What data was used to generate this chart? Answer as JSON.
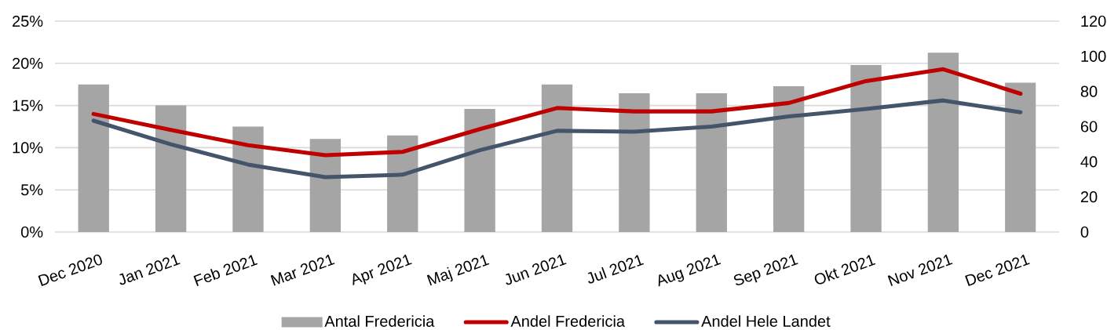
{
  "chart_data": {
    "type": "bar",
    "categories": [
      "Dec 2020",
      "Jan 2021",
      "Feb 2021",
      "Mar 2021",
      "Apr 2021",
      "Maj 2021",
      "Jun 2021",
      "Jul 2021",
      "Aug 2021",
      "Sep 2021",
      "Okt 2021",
      "Nov 2021",
      "Dec 2021"
    ],
    "series": [
      {
        "name": "Antal Fredericia",
        "axis": "y2",
        "color": "#a5a5a5",
        "values": [
          84,
          72,
          60,
          53,
          55,
          70,
          84,
          79,
          79,
          83,
          95,
          102,
          85
        ]
      },
      {
        "name": "Andel Fredericia",
        "type": "line",
        "color": "#c00000",
        "values": [
          14.0,
          12.1,
          10.3,
          9.1,
          9.5,
          12.2,
          14.7,
          14.3,
          14.3,
          15.3,
          17.9,
          19.3,
          16.4
        ]
      },
      {
        "name": "Andel Hele Landet",
        "type": "line",
        "color": "#44546a",
        "values": [
          13.2,
          10.4,
          8.0,
          6.5,
          6.8,
          9.7,
          12.0,
          11.9,
          12.5,
          13.7,
          14.6,
          15.6,
          14.2
        ]
      }
    ],
    "ylim": [
      0,
      25
    ],
    "yticks": [
      {
        "value": 0,
        "label": "0%"
      },
      {
        "value": 5,
        "label": "5%"
      },
      {
        "value": 10,
        "label": "10%"
      },
      {
        "value": 15,
        "label": "15%"
      },
      {
        "value": 20,
        "label": "20%"
      },
      {
        "value": 25,
        "label": "25%"
      }
    ],
    "y2lim": [
      0,
      120
    ],
    "y2ticks": [
      0,
      20,
      40,
      60,
      80,
      100,
      120
    ],
    "grid": "y",
    "legend": "bottom"
  }
}
